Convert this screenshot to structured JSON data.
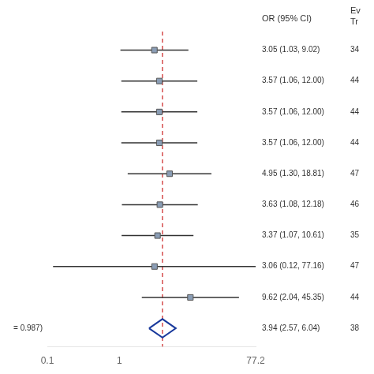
{
  "chart_data": {
    "type": "forest",
    "series": [
      {
        "marker": "square",
        "color": "#8a9db5",
        "values": [
          3.05,
          3.57,
          3.57,
          3.57,
          4.95,
          3.63,
          3.37,
          3.06,
          9.62
        ],
        "ci_low": [
          1.03,
          1.06,
          1.06,
          1.06,
          1.3,
          1.08,
          1.07,
          0.12,
          2.04
        ],
        "ci_high": [
          9.02,
          12.0,
          12.0,
          12.0,
          18.81,
          12.18,
          10.61,
          77.16,
          45.35
        ],
        "value_labels": [
          "3.05 (1.03, 9.02)",
          "3.57 (1.06, 12.00)",
          "3.57 (1.06, 12.00)",
          "3.57 (1.06, 12.00)",
          "4.95 (1.30, 18.81)",
          "3.63 (1.08, 12.18)",
          "3.37 (1.07, 10.61)",
          "3.06 (0.12, 77.16)",
          "9.62 (2.04, 45.35)"
        ],
        "ev_tr": [
          "34",
          "44",
          "44",
          "44",
          "47",
          "46",
          "35",
          "47",
          "44"
        ]
      },
      {
        "marker": "diamond",
        "color": "#1a3a9c",
        "values": [
          3.94
        ],
        "ci_low": [
          2.57
        ],
        "ci_high": [
          6.04
        ],
        "value_labels": [
          "3.94 (2.57, 6.04)"
        ],
        "ev_tr": [
          "38"
        ],
        "annotation": "= 0.987)"
      }
    ],
    "header_label": "OR (95% CI)",
    "header_ev": "Ev",
    "header_tr": "Tr",
    "reference_line": {
      "value": 3.94,
      "color": "#cc2222",
      "line_style": "dashed"
    },
    "log": "x",
    "xlim": [
      0.1,
      77.2
    ],
    "xticks": [
      0.1,
      1,
      77.2
    ],
    "tick_labels": "x",
    "grid": false
  }
}
